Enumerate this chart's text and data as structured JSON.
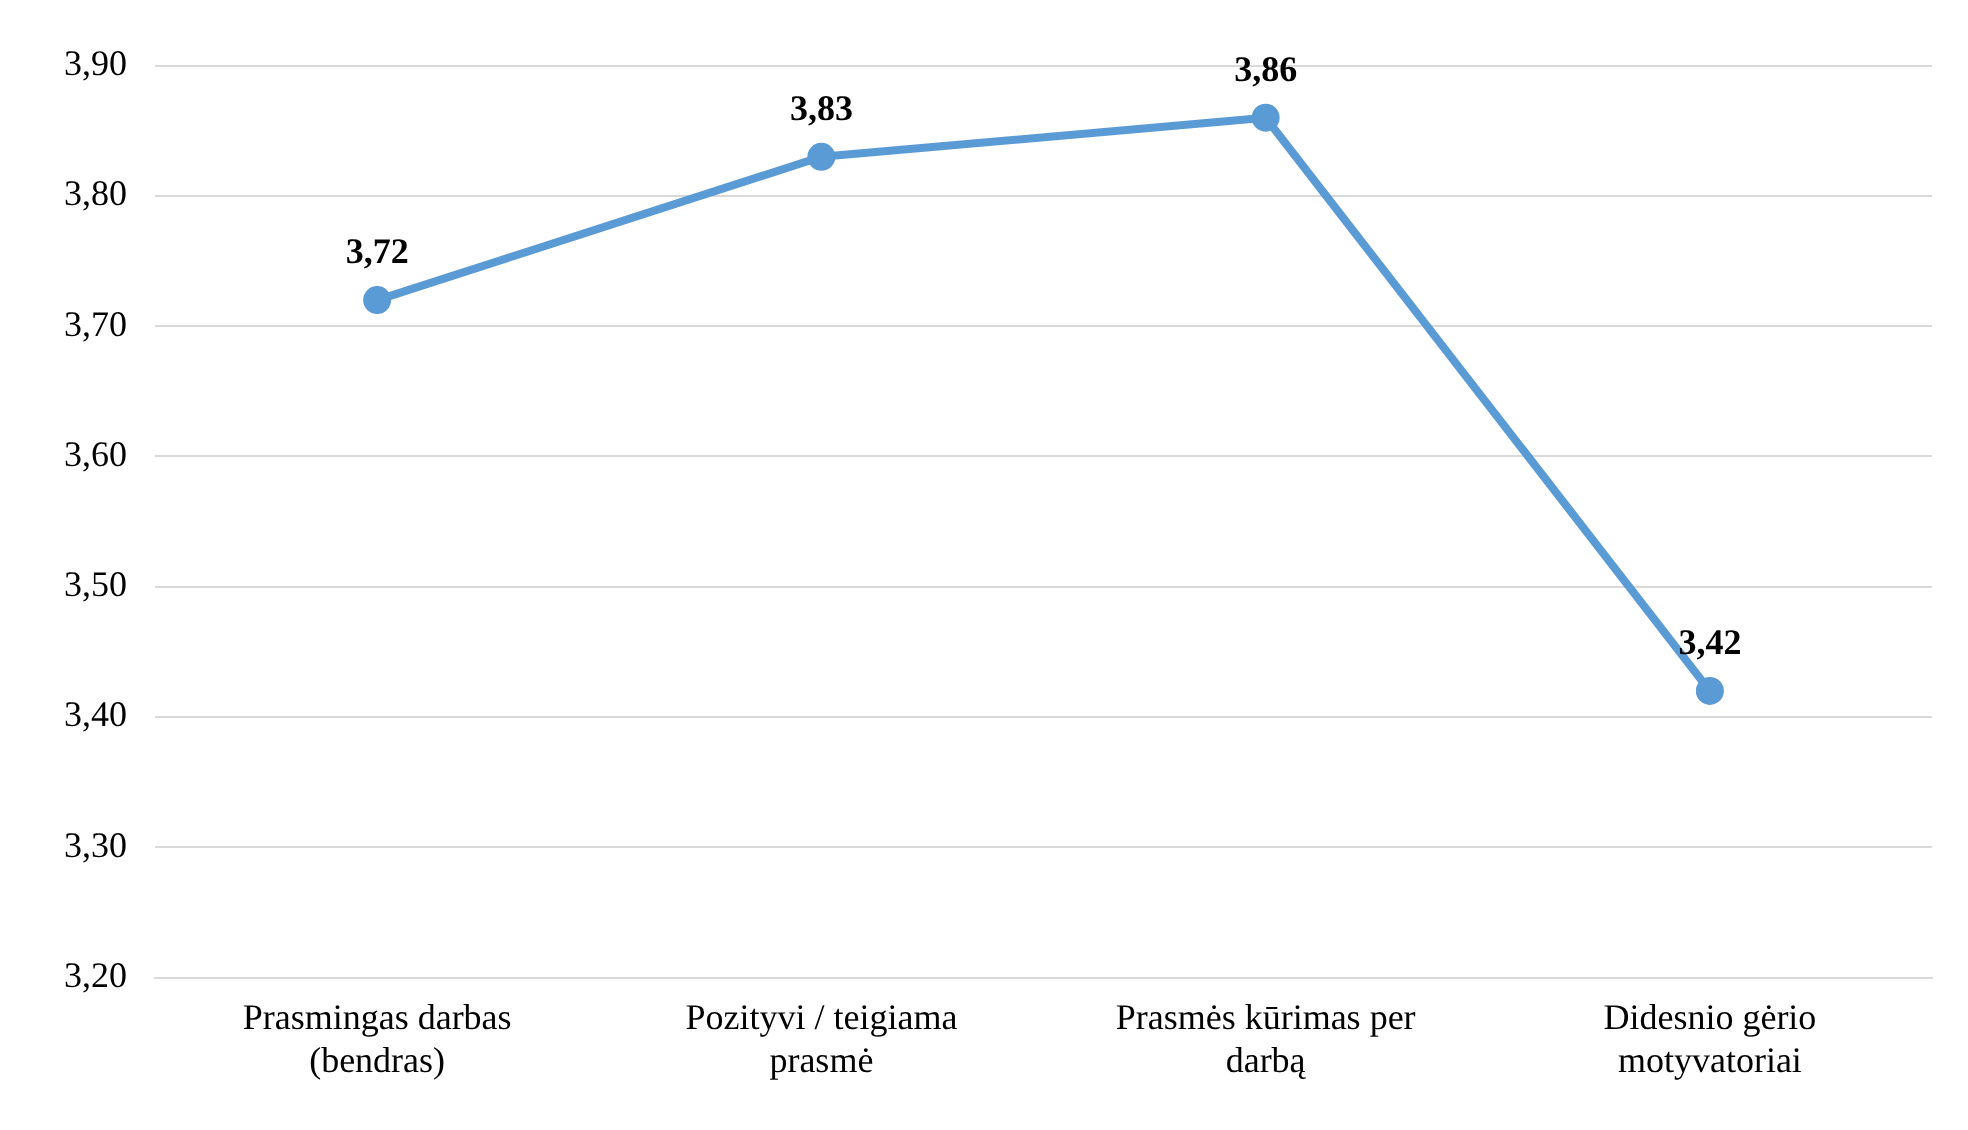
{
  "chart_data": {
    "type": "line",
    "categories": [
      "Prasmingas darbas (bendras)",
      "Pozityvi / teigiama prasmė",
      "Prasmės kūrimas per darbą",
      "Didesnio gėrio motyvatoriai"
    ],
    "series": [
      {
        "color": "#5b9bd5",
        "values": [
          3.72,
          3.83,
          3.86,
          3.42
        ],
        "value_labels": [
          "3,72",
          "3,83",
          "3,86",
          "3,42"
        ]
      }
    ],
    "ylim": [
      3.2,
      3.9
    ],
    "yticks": [
      {
        "value": 3.2,
        "label": "3,20"
      },
      {
        "value": 3.3,
        "label": "3,30"
      },
      {
        "value": 3.4,
        "label": "3,40"
      },
      {
        "value": 3.5,
        "label": "3,50"
      },
      {
        "value": 3.6,
        "label": "3,60"
      },
      {
        "value": 3.7,
        "label": "3,70"
      },
      {
        "value": 3.8,
        "label": "3,80"
      },
      {
        "value": 3.9,
        "label": "3,90"
      }
    ],
    "grid": "y",
    "legend": false,
    "marker": "circle",
    "line_style": "solid"
  }
}
